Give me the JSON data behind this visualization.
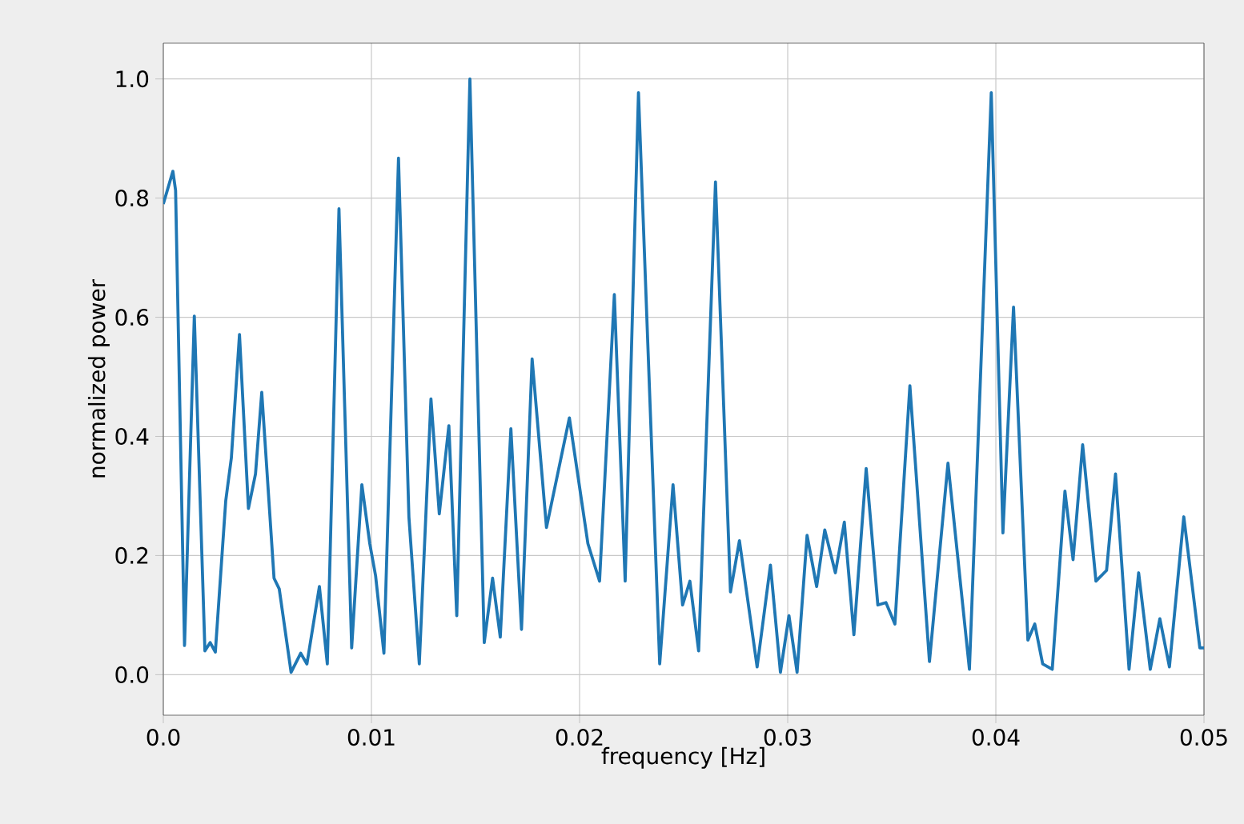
{
  "chart_data": {
    "type": "line",
    "xlabel": "frequency [Hz]",
    "ylabel": "normalized power",
    "xlim": [
      0,
      0.05
    ],
    "ylim": [
      -0.068,
      1.06
    ],
    "xticks": [
      {
        "value": 0,
        "label": "0.0"
      },
      0.01,
      0.02,
      0.03,
      0.04,
      0.05
    ],
    "yticks": [
      {
        "value": 0,
        "label": "0.0"
      },
      0.2,
      0.4,
      0.6,
      0.8,
      {
        "value": 1,
        "label": "1.0"
      }
    ],
    "grid": true,
    "marker": "none",
    "line_style": "solid",
    "series": [
      {
        "color": "#1f77b4",
        "x": [
          0,
          0.00046,
          0.00059,
          0.00102,
          0.00149,
          0.002,
          0.00225,
          0.0025,
          0.003,
          0.00327,
          0.00366,
          0.00409,
          0.00443,
          0.00473,
          0.00532,
          0.00557,
          0.00614,
          0.0066,
          0.0069,
          0.0075,
          0.00788,
          0.00844,
          0.00905,
          0.00954,
          0.00992,
          0.0102,
          0.0106,
          0.0113,
          0.0118,
          0.0123,
          0.01286,
          0.01326,
          0.01372,
          0.0141,
          0.01473,
          0.01542,
          0.01582,
          0.01619,
          0.0167,
          0.01721,
          0.01772,
          0.01841,
          0.01951,
          0.0204,
          0.02096,
          0.02167,
          0.02219,
          0.02283,
          0.02385,
          0.02449,
          0.02495,
          0.0253,
          0.02572,
          0.02653,
          0.02725,
          0.02768,
          0.02853,
          0.02917,
          0.02965,
          0.03006,
          0.03045,
          0.03093,
          0.03139,
          0.03178,
          0.03229,
          0.03272,
          0.03318,
          0.03377,
          0.03433,
          0.03472,
          0.03515,
          0.03587,
          0.03681,
          0.0377,
          0.03873,
          0.03978,
          0.04034,
          0.04085,
          0.04154,
          0.04187,
          0.04225,
          0.04271,
          0.04332,
          0.04371,
          0.04417,
          0.04481,
          0.04532,
          0.04575,
          0.0464,
          0.04686,
          0.04742,
          0.04788,
          0.04834,
          0.04903,
          0.0498,
          0.05
        ],
        "values": [
          0.79,
          0.845,
          0.813,
          0.049,
          0.602,
          0.04,
          0.054,
          0.038,
          0.292,
          0.364,
          0.571,
          0.279,
          0.337,
          0.474,
          0.162,
          0.144,
          0.004,
          0.036,
          0.018,
          0.148,
          0.018,
          0.782,
          0.045,
          0.319,
          0.22,
          0.166,
          0.036,
          0.867,
          0.265,
          0.018,
          0.463,
          0.27,
          0.418,
          0.099,
          1.0,
          0.054,
          0.162,
          0.063,
          0.413,
          0.076,
          0.53,
          0.247,
          0.431,
          0.22,
          0.157,
          0.638,
          0.157,
          0.977,
          0.018,
          0.319,
          0.117,
          0.157,
          0.04,
          0.827,
          0.139,
          0.225,
          0.013,
          0.184,
          0.004,
          0.099,
          0.004,
          0.234,
          0.148,
          0.243,
          0.171,
          0.256,
          0.067,
          0.346,
          0.117,
          0.121,
          0.085,
          0.485,
          0.022,
          0.355,
          0.009,
          0.977,
          0.238,
          0.617,
          0.058,
          0.085,
          0.018,
          0.009,
          0.308,
          0.193,
          0.386,
          0.157,
          0.175,
          0.337,
          0.009,
          0.171,
          0.009,
          0.094,
          0.013,
          0.265,
          0.045,
          0.045
        ]
      }
    ]
  }
}
